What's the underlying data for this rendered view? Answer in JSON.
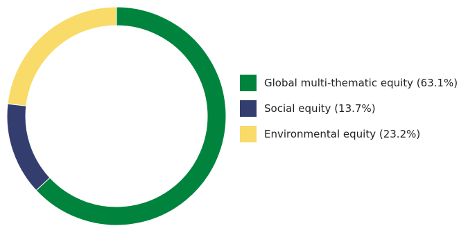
{
  "chart_data": {
    "type": "pie",
    "categories": [
      "Global multi-thematic equity",
      "Social equity",
      "Environmental equity"
    ],
    "values": [
      63.1,
      13.7,
      23.2
    ],
    "value_unit": "%",
    "colors": [
      "#00843d",
      "#343e6e",
      "#f8db68"
    ],
    "legend_labels": [
      "Global multi-thematic equity (63.1%)",
      "Social equity (13.7%)",
      "Environmental equity (23.2%)"
    ],
    "legend_position": "right",
    "donut": true,
    "start_angle": "top",
    "direction": "clockwise"
  }
}
